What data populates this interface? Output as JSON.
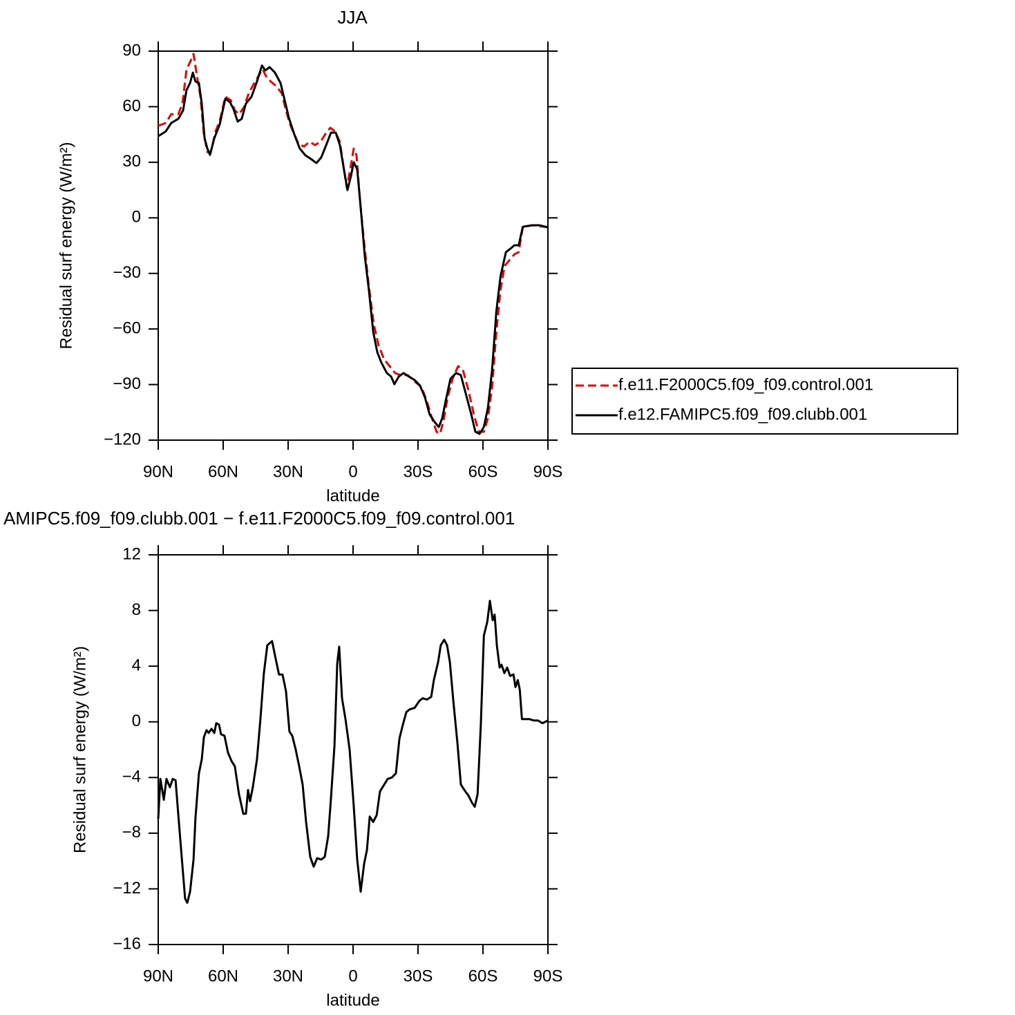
{
  "chart_data": [
    {
      "type": "line",
      "title": "JJA",
      "xlabel": "latitude",
      "ylabel": "Residual surf energy (W/m²)",
      "xlim": [
        90,
        -90
      ],
      "ylim": [
        -120,
        90
      ],
      "xticks": [
        {
          "value": 90,
          "label": "90N"
        },
        {
          "value": 60,
          "label": "60N"
        },
        {
          "value": 30,
          "label": "30N"
        },
        0,
        {
          "value": -30,
          "label": "30S"
        },
        {
          "value": -60,
          "label": "60S"
        },
        {
          "value": -90,
          "label": "90S"
        }
      ],
      "yticks": [
        {
          "value": -120,
          "label": "−120"
        },
        {
          "value": -90,
          "label": "−90"
        },
        {
          "value": -60,
          "label": "−60"
        },
        {
          "value": -30,
          "label": "−30"
        },
        0,
        30,
        60,
        90
      ],
      "legend": "right",
      "series": [
        {
          "name": "f.e11.F2000C5.f09_f09.control.001",
          "color": "#e00000",
          "line_style": "dashed",
          "x": [
            90,
            86.5,
            84,
            80.7,
            78.8,
            76.9,
            75.3,
            73.7,
            72.1,
            70.5,
            68.9,
            67.3,
            65.7,
            63.5,
            61.6,
            59,
            56.5,
            54.6,
            52.6,
            50.4,
            48.2,
            45.6,
            43.7,
            41.8,
            39.9,
            38,
            35.4,
            32.9,
            31,
            29.1,
            27.1,
            25.2,
            22.7,
            20.1,
            17.6,
            15,
            12.4,
            10.5,
            8.3,
            6.1,
            4.2,
            2.9,
            1.3,
            -0.3,
            -1.6,
            -3.2,
            -5.4,
            -7.3,
            -9.6,
            -11.8,
            -14.3,
            -16.9,
            -19.4,
            -22,
            -25.2,
            -28.4,
            -31.6,
            -34.2,
            -36.4,
            -38.6,
            -40.2,
            -41.8,
            -43.7,
            -46,
            -48.5,
            -50.7,
            -53.3,
            -55.8,
            -58.1,
            -60.4,
            -62.3,
            -64.2,
            -66.2,
            -68.1,
            -70,
            -72.6,
            -74.5,
            -76.5,
            -78.4,
            -82.8,
            -90
          ],
          "values": [
            49.7,
            51.2,
            56,
            56,
            61.7,
            80.3,
            84,
            88.5,
            76.5,
            65.4,
            45,
            35.5,
            35.5,
            46.7,
            52.3,
            65.4,
            63.5,
            58,
            56,
            59.8,
            67.2,
            72.8,
            76.5,
            80.3,
            75.8,
            73.6,
            71,
            67.2,
            58,
            50.5,
            44.9,
            40,
            38.5,
            41.1,
            39.3,
            41.1,
            46,
            48.6,
            46.7,
            41.1,
            26.2,
            16.1,
            26.2,
            37.4,
            33.7,
            9.4,
            -16.7,
            -37.1,
            -57.7,
            -68.9,
            -76.3,
            -80.1,
            -83.8,
            -84.9,
            -84.9,
            -88.3,
            -91.3,
            -99.5,
            -108.1,
            -115.5,
            -116.6,
            -109.2,
            -96.9,
            -86.8,
            -80.1,
            -82,
            -93.1,
            -106.2,
            -115.5,
            -115.5,
            -108.1,
            -91.3,
            -61.4,
            -39,
            -26,
            -22.3,
            -19.7,
            -18.5,
            -4.8,
            -4,
            -5.1
          ]
        },
        {
          "name": "f.e12.FAMIPC5.f09_f09.clubb.001",
          "color": "#000000",
          "line_style": "solid",
          "x": [
            90,
            86.5,
            84,
            80.7,
            78.5,
            76.9,
            75.3,
            74,
            72.8,
            71.2,
            69.9,
            68.6,
            67.3,
            66.1,
            64.1,
            61.6,
            59,
            56.8,
            55.2,
            53.3,
            51.4,
            49.5,
            46.9,
            44.4,
            42.1,
            40.5,
            38.6,
            36.1,
            33.5,
            31.6,
            29.7,
            27.1,
            24.6,
            22,
            19.5,
            16.9,
            14.7,
            12.4,
            10.2,
            8,
            6.1,
            4.5,
            2.6,
            1,
            -0.3,
            -1.9,
            -3.5,
            -5.4,
            -7.3,
            -9.3,
            -11.2,
            -13.1,
            -15.6,
            -17.6,
            -19.1,
            -21.1,
            -23.3,
            -25.8,
            -28.4,
            -30.9,
            -33.2,
            -35.4,
            -38,
            -39.6,
            -41.2,
            -42.8,
            -45,
            -47.6,
            -49.8,
            -52.1,
            -54.6,
            -56.5,
            -58.4,
            -60.4,
            -62.3,
            -64.2,
            -66.2,
            -68.1,
            -70.6,
            -72.6,
            -74.5,
            -76.5,
            -78.4,
            -82.8,
            -86,
            -90
          ],
          "values": [
            44.1,
            46.7,
            51.2,
            53.5,
            58,
            69,
            72.8,
            78.4,
            73.6,
            72.8,
            61.7,
            43,
            37.4,
            34,
            43,
            50.5,
            64.3,
            62.4,
            58.7,
            52,
            53.5,
            61.7,
            65.4,
            73.6,
            82.2,
            79.6,
            81.4,
            78.4,
            72.8,
            63.5,
            54.2,
            44.9,
            37.4,
            33.7,
            31.8,
            29.6,
            32.6,
            39.3,
            46,
            46,
            39.3,
            28.1,
            15,
            22.5,
            30,
            26.2,
            5.7,
            -20.4,
            -39,
            -61.4,
            -72.6,
            -78.2,
            -83.8,
            -85.7,
            -89.8,
            -85.7,
            -83.8,
            -85.7,
            -87.5,
            -90.5,
            -96.9,
            -106.2,
            -110.7,
            -112.9,
            -108.1,
            -98.7,
            -86.8,
            -83.8,
            -84.9,
            -95,
            -106.2,
            -115.5,
            -116.6,
            -112.9,
            -102.5,
            -82,
            -50.3,
            -31.6,
            -18.5,
            -16.7,
            -14.8,
            -14.8,
            -4.8,
            -4,
            -4,
            -5.1
          ]
        }
      ]
    },
    {
      "type": "line",
      "title": "AMIPC5.f09_f09.clubb.001 − f.e11.F2000C5.f09_f09.control.001",
      "xlabel": "latitude",
      "ylabel": "Residual surf energy (W/m²)",
      "xlim": [
        90,
        -90
      ],
      "ylim": [
        -16,
        12
      ],
      "xticks": [
        {
          "value": 90,
          "label": "90N"
        },
        {
          "value": 60,
          "label": "60N"
        },
        {
          "value": 30,
          "label": "30N"
        },
        0,
        {
          "value": -30,
          "label": "30S"
        },
        {
          "value": -60,
          "label": "60S"
        },
        {
          "value": -90,
          "label": "90S"
        }
      ],
      "yticks": [
        {
          "value": -16,
          "label": "−16"
        },
        {
          "value": -12,
          "label": "−12"
        },
        {
          "value": -8,
          "label": "−8"
        },
        {
          "value": -4,
          "label": "−4"
        },
        0,
        4,
        8,
        12
      ],
      "series": [
        {
          "color": "#000000",
          "line_style": "solid",
          "x": [
            90,
            89,
            87.4,
            86.2,
            84.6,
            83.3,
            82,
            80.7,
            78.8,
            77.6,
            76.6,
            75.3,
            73.7,
            72.8,
            71.2,
            69.9,
            68.9,
            67.7,
            66.7,
            65.4,
            64.1,
            63.2,
            61.9,
            61,
            59.4,
            57.8,
            56.2,
            54.6,
            52.7,
            50.7,
            49.5,
            48.5,
            47.6,
            46.3,
            44.4,
            42.8,
            41.2,
            39.6,
            37.4,
            35.7,
            34.2,
            32.6,
            31,
            29.4,
            28.1,
            26.5,
            24.9,
            23.3,
            21.7,
            19.8,
            18.2,
            16.6,
            14.7,
            13.1,
            11.5,
            10.2,
            8.6,
            7.3,
            6.4,
            5.1,
            3.5,
            1.6,
            -0.3,
            -1.9,
            -3.5,
            -5.1,
            -6.4,
            -7.7,
            -9.3,
            -10.9,
            -12.4,
            -14,
            -16,
            -17.9,
            -19.8,
            -21.4,
            -23,
            -24.6,
            -26.2,
            -28.4,
            -30.6,
            -32.2,
            -34.1,
            -36.1,
            -37.3,
            -39.3,
            -40.5,
            -42.1,
            -43.4,
            -44.7,
            -46.3,
            -48.2,
            -49.8,
            -51.4,
            -53.3,
            -54.9,
            -56.2,
            -57.5,
            -59,
            -60.4,
            -62,
            -63.2,
            -64.5,
            -65.4,
            -66.4,
            -67.7,
            -68.6,
            -69.9,
            -71.2,
            -72.5,
            -74.1,
            -75,
            -76.1,
            -77,
            -78,
            -79.6,
            -81.4,
            -83.4,
            -85.3,
            -87.5,
            -90
          ],
          "values": [
            -6.96,
            -4.1,
            -5.6,
            -4.1,
            -4.7,
            -4.1,
            -4.2,
            -6.7,
            -10.4,
            -12.7,
            -13,
            -12.2,
            -9.9,
            -6.9,
            -3.7,
            -2.7,
            -1.1,
            -0.6,
            -0.8,
            -0.5,
            -0.8,
            -0.1,
            -0.2,
            -0.9,
            -1,
            -2.2,
            -2.8,
            -3.2,
            -5.2,
            -6.6,
            -6.6,
            -4.9,
            -5.7,
            -4.7,
            -2.7,
            0.2,
            3.5,
            5.5,
            5.8,
            4.5,
            3.4,
            3.4,
            2.2,
            -0.7,
            -1,
            -2,
            -3.2,
            -4.5,
            -7.2,
            -9.7,
            -10.4,
            -9.8,
            -9.9,
            -9.7,
            -8.2,
            -5.5,
            -1.7,
            4.2,
            5.4,
            1.7,
            0.2,
            -2,
            -6,
            -9.9,
            -12.2,
            -10.2,
            -9.2,
            -6.8,
            -7.2,
            -6.7,
            -5,
            -4.6,
            -4.1,
            -4,
            -3.7,
            -1.2,
            -0.2,
            0.7,
            0.9,
            1,
            1.5,
            1.7,
            1.6,
            1.8,
            3,
            4.3,
            5.5,
            5.9,
            5.5,
            4.3,
            1.5,
            -1.5,
            -4.5,
            -4.9,
            -5.3,
            -5.8,
            -6.1,
            -5.2,
            -0.2,
            6.2,
            7.2,
            8.7,
            7.3,
            7.7,
            5.5,
            3.9,
            4.1,
            3.5,
            3.9,
            3.3,
            3.4,
            2.5,
            3,
            2.3,
            0.2,
            0.2,
            0.2,
            0.1,
            0.1,
            -0.1,
            0.1
          ]
        }
      ]
    }
  ]
}
